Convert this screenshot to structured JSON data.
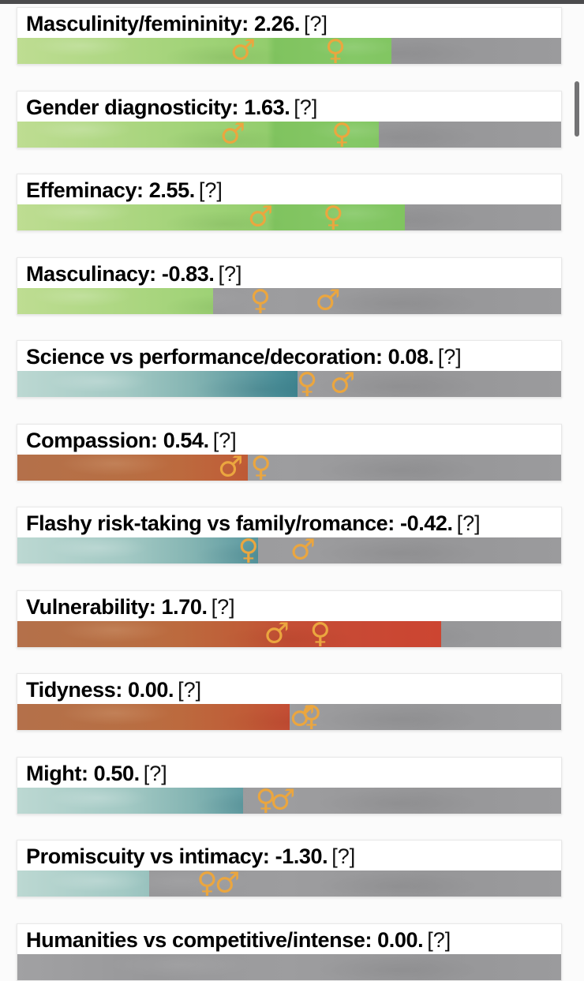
{
  "page": {
    "background_color": "#fbfbfb",
    "top_edge_color": "#4b4b4d",
    "card_background": "#ffffff",
    "track_color": "#9a9a9c",
    "symbol_color": "#eba63f",
    "accent_colors": {
      "green": "#8bc968",
      "teal": "#4d919a",
      "orange": "#c25939"
    }
  },
  "symbols": {
    "male": "♂",
    "female": "♀"
  },
  "rows": [
    {
      "id": "masculinity-femininity",
      "heading": "Masculinity/femininity: 2.26.",
      "help": "[?]",
      "score": 2.26,
      "palette": "green",
      "fill_pct": 68.8,
      "markers": [
        {
          "icon": "male",
          "pct": 41.5
        },
        {
          "icon": "female",
          "pct": 58.5
        }
      ]
    },
    {
      "id": "gender-diagnosticity",
      "heading": "Gender diagnosticity: 1.63.",
      "help": "[?]",
      "score": 1.63,
      "palette": "green",
      "fill_pct": 66.5,
      "markers": [
        {
          "icon": "male",
          "pct": 39.6
        },
        {
          "icon": "female",
          "pct": 59.7
        }
      ]
    },
    {
      "id": "effeminacy",
      "heading": "Effeminacy: 2.55.",
      "help": "[?]",
      "score": 2.55,
      "palette": "green",
      "fill_pct": 71.2,
      "markers": [
        {
          "icon": "male",
          "pct": 44.7
        },
        {
          "icon": "female",
          "pct": 58.1
        }
      ]
    },
    {
      "id": "masculinacy",
      "heading": "Masculinacy: -0.83.",
      "help": "[?]",
      "score": -0.83,
      "palette": "green",
      "fill_pct": 36.0,
      "markers": [
        {
          "icon": "female",
          "pct": 44.7
        },
        {
          "icon": "male",
          "pct": 57.1
        }
      ]
    },
    {
      "id": "science-vs-performance-decoration",
      "heading": "Science vs performance/decoration: 0.08.",
      "help": "[?]",
      "score": 0.08,
      "palette": "teal",
      "fill_pct": 51.5,
      "markers": [
        {
          "icon": "female",
          "pct": 53.3
        },
        {
          "icon": "male",
          "pct": 59.8
        }
      ]
    },
    {
      "id": "compassion",
      "heading": "Compassion: 0.54.",
      "help": "[?]",
      "score": 0.54,
      "palette": "orange",
      "fill_pct": 42.4,
      "markers": [
        {
          "icon": "male",
          "pct": 39.2
        },
        {
          "icon": "female",
          "pct": 44.8
        }
      ]
    },
    {
      "id": "flashy-risk-taking-vs-family-romance",
      "heading": "Flashy risk-taking vs family/romance: -0.42.",
      "help": "[?]",
      "score": -0.42,
      "palette": "teal",
      "fill_pct": 44.3,
      "markers": [
        {
          "icon": "female",
          "pct": 42.5
        },
        {
          "icon": "male",
          "pct": 52.5
        }
      ]
    },
    {
      "id": "vulnerability",
      "heading": "Vulnerability: 1.70.",
      "help": "[?]",
      "score": 1.7,
      "palette": "orange",
      "fill_pct": 77.9,
      "markers": [
        {
          "icon": "male",
          "pct": 47.7
        },
        {
          "icon": "female",
          "pct": 55.7
        }
      ]
    },
    {
      "id": "tidyness",
      "heading": "Tidyness: 0.00.",
      "help": "[?]",
      "score": 0.0,
      "palette": "orange",
      "fill_pct": 50.1,
      "markers": [
        {
          "icon": "male",
          "pct": 52.4
        },
        {
          "icon": "female",
          "pct": 54.1
        }
      ]
    },
    {
      "id": "might",
      "heading": "Might: 0.50.",
      "help": "[?]",
      "score": 0.5,
      "palette": "teal",
      "fill_pct": 41.5,
      "markers": [
        {
          "icon": "female",
          "pct": 45.7
        },
        {
          "icon": "male",
          "pct": 48.8
        }
      ]
    },
    {
      "id": "promiscuity-vs-intimacy",
      "heading": "Promiscuity vs intimacy: -1.30.",
      "help": "[?]",
      "score": -1.3,
      "palette": "teal",
      "fill_pct": 24.2,
      "markers": [
        {
          "icon": "female",
          "pct": 34.9
        },
        {
          "icon": "male",
          "pct": 38.6
        }
      ]
    },
    {
      "id": "humanities-vs-competitive-intense",
      "heading": "Humanities vs competitive/intense: 0.00.",
      "help": "[?]",
      "score": 0.0,
      "partial": true,
      "markers": []
    }
  ],
  "chart_data": {
    "type": "bar",
    "categories": [
      "Masculinity/femininity",
      "Gender diagnosticity",
      "Effeminacy",
      "Masculinacy",
      "Science vs performance/decoration",
      "Compassion",
      "Flashy risk-taking vs family/romance",
      "Vulnerability",
      "Tidyness",
      "Might",
      "Promiscuity vs intimacy",
      "Humanities vs competitive/intense"
    ],
    "values": [
      2.26,
      1.63,
      2.55,
      -0.83,
      0.08,
      0.54,
      -0.42,
      1.7,
      0.0,
      0.5,
      -1.3,
      0.0
    ],
    "title": "",
    "xlabel": "",
    "ylabel": "",
    "notes": "each row shows a textured fill bar with male/female sign markers"
  }
}
